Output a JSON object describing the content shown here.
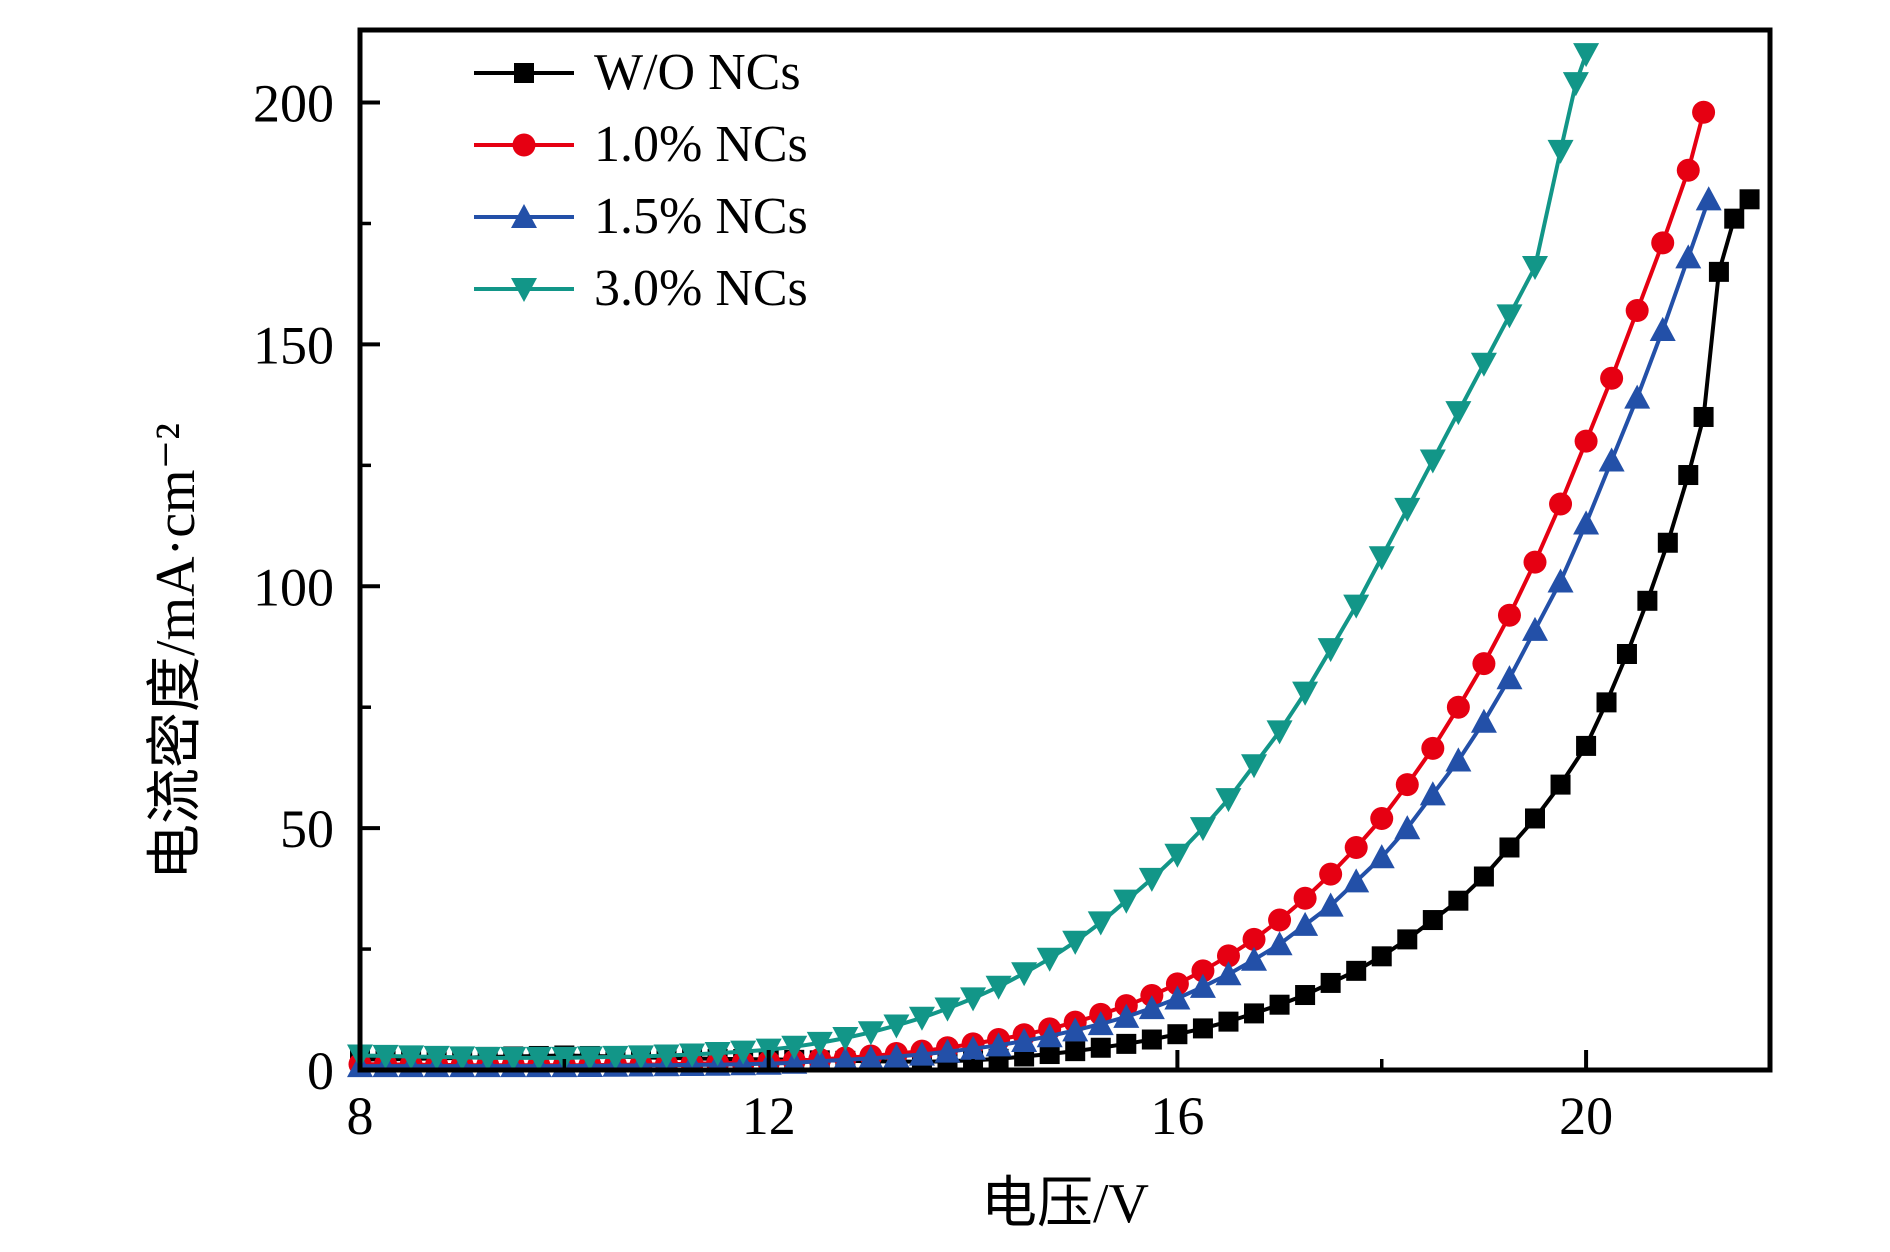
{
  "chart_data": {
    "type": "line",
    "title": "",
    "xlabel": "电压/V",
    "ylabel": "电流密度/mA·cm⁻²",
    "xlim": [
      8,
      21.8
    ],
    "ylim": [
      0,
      215
    ],
    "x_ticks": [
      8,
      12,
      16,
      20
    ],
    "y_ticks": [
      0,
      50,
      100,
      150,
      200
    ],
    "x_minor_ticks": [
      10,
      14,
      18
    ],
    "y_minor_ticks": [
      25,
      75,
      125,
      175
    ],
    "grid": false,
    "legend_position": "upper-left",
    "frame_color": "#000000",
    "series": [
      {
        "name": "W/O NCs",
        "color": "#000000",
        "marker": "square",
        "points": [
          [
            8,
            2.2
          ],
          [
            8.25,
            2.2
          ],
          [
            8.5,
            2.3
          ],
          [
            8.75,
            2.4
          ],
          [
            9,
            2.5
          ],
          [
            9.25,
            2.7
          ],
          [
            9.5,
            2.8
          ],
          [
            9.75,
            2.9
          ],
          [
            10,
            3.0
          ],
          [
            10.25,
            2.9
          ],
          [
            10.5,
            2.8
          ],
          [
            10.75,
            2.6
          ],
          [
            11,
            2.5
          ],
          [
            11.25,
            2.4
          ],
          [
            11.5,
            2.3
          ],
          [
            11.75,
            2.25
          ],
          [
            12,
            2.2
          ],
          [
            12.25,
            2.1
          ],
          [
            12.5,
            2.0
          ],
          [
            12.75,
            1.9
          ],
          [
            13,
            1.8
          ],
          [
            13.25,
            1.75
          ],
          [
            13.5,
            1.7
          ],
          [
            13.75,
            1.8
          ],
          [
            14,
            2.0
          ],
          [
            14.25,
            2.3
          ],
          [
            14.5,
            2.8
          ],
          [
            14.75,
            3.3
          ],
          [
            15,
            3.9
          ],
          [
            15.25,
            4.6
          ],
          [
            15.5,
            5.4
          ],
          [
            15.75,
            6.3
          ],
          [
            16,
            7.4
          ],
          [
            16.25,
            8.6
          ],
          [
            16.5,
            10.0
          ],
          [
            16.75,
            11.7
          ],
          [
            17,
            13.5
          ],
          [
            17.25,
            15.5
          ],
          [
            17.5,
            18.0
          ],
          [
            17.75,
            20.5
          ],
          [
            18,
            23.5
          ],
          [
            18.25,
            27.0
          ],
          [
            18.5,
            31.0
          ],
          [
            18.75,
            35.0
          ],
          [
            19,
            40.0
          ],
          [
            19.25,
            46.0
          ],
          [
            19.5,
            52.0
          ],
          [
            19.75,
            59.0
          ],
          [
            20,
            67.0
          ],
          [
            20.2,
            76.0
          ],
          [
            20.4,
            86.0
          ],
          [
            20.6,
            97.0
          ],
          [
            20.8,
            109.0
          ],
          [
            21,
            123.0
          ],
          [
            21.15,
            135.0
          ],
          [
            21.3,
            165.0
          ],
          [
            21.45,
            176.0
          ],
          [
            21.6,
            180.0
          ]
        ]
      },
      {
        "name": "1.0% NCs",
        "color": "#e60012",
        "marker": "circle",
        "points": [
          [
            8,
            1.2
          ],
          [
            8.25,
            1.2
          ],
          [
            8.5,
            1.1
          ],
          [
            8.75,
            1.1
          ],
          [
            9,
            1.0
          ],
          [
            9.25,
            1.0
          ],
          [
            9.5,
            1.0
          ],
          [
            9.75,
            1.0
          ],
          [
            10,
            1.0
          ],
          [
            10.25,
            1.0
          ],
          [
            10.5,
            1.1
          ],
          [
            10.75,
            1.1
          ],
          [
            11,
            1.2
          ],
          [
            11.25,
            1.3
          ],
          [
            11.5,
            1.4
          ],
          [
            11.75,
            1.5
          ],
          [
            12,
            1.7
          ],
          [
            12.25,
            1.9
          ],
          [
            12.5,
            2.2
          ],
          [
            12.75,
            2.5
          ],
          [
            13,
            2.9
          ],
          [
            13.25,
            3.4
          ],
          [
            13.5,
            3.9
          ],
          [
            13.75,
            4.6
          ],
          [
            14,
            5.4
          ],
          [
            14.25,
            6.3
          ],
          [
            14.5,
            7.3
          ],
          [
            14.75,
            8.5
          ],
          [
            15,
            9.9
          ],
          [
            15.25,
            11.5
          ],
          [
            15.5,
            13.3
          ],
          [
            15.75,
            15.4
          ],
          [
            16,
            17.8
          ],
          [
            16.25,
            20.5
          ],
          [
            16.5,
            23.6
          ],
          [
            16.75,
            27.0
          ],
          [
            17,
            31.0
          ],
          [
            17.25,
            35.5
          ],
          [
            17.5,
            40.5
          ],
          [
            17.75,
            46.0
          ],
          [
            18,
            52.0
          ],
          [
            18.25,
            59.0
          ],
          [
            18.5,
            66.5
          ],
          [
            18.75,
            75.0
          ],
          [
            19,
            84.0
          ],
          [
            19.25,
            94.0
          ],
          [
            19.5,
            105.0
          ],
          [
            19.75,
            117.0
          ],
          [
            20,
            130.0
          ],
          [
            20.25,
            143.0
          ],
          [
            20.5,
            157.0
          ],
          [
            20.75,
            171.0
          ],
          [
            21,
            186.0
          ],
          [
            21.15,
            198.0
          ]
        ]
      },
      {
        "name": "1.5% NCs",
        "color": "#2350a8",
        "marker": "triangle-up",
        "points": [
          [
            8,
            0.8
          ],
          [
            8.25,
            0.8
          ],
          [
            8.5,
            0.8
          ],
          [
            8.75,
            0.8
          ],
          [
            9,
            0.8
          ],
          [
            9.25,
            0.8
          ],
          [
            9.5,
            0.8
          ],
          [
            9.75,
            0.8
          ],
          [
            10,
            0.8
          ],
          [
            10.25,
            0.85
          ],
          [
            10.5,
            0.9
          ],
          [
            10.75,
            0.95
          ],
          [
            11,
            1.0
          ],
          [
            11.25,
            1.05
          ],
          [
            11.5,
            1.1
          ],
          [
            11.75,
            1.2
          ],
          [
            12,
            1.3
          ],
          [
            12.25,
            1.5
          ],
          [
            12.5,
            1.8
          ],
          [
            12.75,
            2.1
          ],
          [
            13,
            2.4
          ],
          [
            13.25,
            2.8
          ],
          [
            13.5,
            3.2
          ],
          [
            13.75,
            3.8
          ],
          [
            14,
            4.4
          ],
          [
            14.25,
            5.1
          ],
          [
            14.5,
            6.0
          ],
          [
            14.75,
            7.0
          ],
          [
            15,
            8.2
          ],
          [
            15.25,
            9.5
          ],
          [
            15.5,
            11.0
          ],
          [
            15.75,
            12.8
          ],
          [
            16,
            14.8
          ],
          [
            16.25,
            17.2
          ],
          [
            16.5,
            19.8
          ],
          [
            16.75,
            22.8
          ],
          [
            17,
            26.0
          ],
          [
            17.25,
            30.0
          ],
          [
            17.5,
            34.0
          ],
          [
            17.75,
            39.0
          ],
          [
            18,
            44.0
          ],
          [
            18.25,
            50.0
          ],
          [
            18.5,
            57.0
          ],
          [
            18.75,
            64.0
          ],
          [
            19,
            72.0
          ],
          [
            19.25,
            81.0
          ],
          [
            19.5,
            91.0
          ],
          [
            19.75,
            101.0
          ],
          [
            20,
            113.0
          ],
          [
            20.25,
            126.0
          ],
          [
            20.5,
            139.0
          ],
          [
            20.75,
            153.0
          ],
          [
            21,
            168.0
          ],
          [
            21.2,
            180.0
          ]
        ]
      },
      {
        "name": "3.0% NCs",
        "color": "#129688",
        "marker": "triangle-down",
        "points": [
          [
            8,
            3.0
          ],
          [
            8.25,
            2.9
          ],
          [
            8.5,
            2.8
          ],
          [
            8.75,
            2.7
          ],
          [
            9,
            2.6
          ],
          [
            9.25,
            2.5
          ],
          [
            9.5,
            2.5
          ],
          [
            9.75,
            2.5
          ],
          [
            10,
            2.5
          ],
          [
            10.25,
            2.6
          ],
          [
            10.5,
            2.7
          ],
          [
            10.75,
            2.8
          ],
          [
            11,
            3.0
          ],
          [
            11.25,
            3.2
          ],
          [
            11.5,
            3.5
          ],
          [
            11.75,
            3.8
          ],
          [
            12,
            4.2
          ],
          [
            12.25,
            4.8
          ],
          [
            12.5,
            5.6
          ],
          [
            12.75,
            6.6
          ],
          [
            13,
            7.8
          ],
          [
            13.25,
            9.2
          ],
          [
            13.5,
            10.8
          ],
          [
            13.75,
            12.7
          ],
          [
            14,
            14.8
          ],
          [
            14.25,
            17.2
          ],
          [
            14.5,
            20.0
          ],
          [
            14.75,
            23.0
          ],
          [
            15,
            26.5
          ],
          [
            15.25,
            30.5
          ],
          [
            15.5,
            35.0
          ],
          [
            15.75,
            39.5
          ],
          [
            16,
            44.5
          ],
          [
            16.25,
            50.0
          ],
          [
            16.5,
            56.0
          ],
          [
            16.75,
            63.0
          ],
          [
            17,
            70.0
          ],
          [
            17.25,
            78.0
          ],
          [
            17.5,
            87.0
          ],
          [
            17.75,
            96.0
          ],
          [
            18,
            106.0
          ],
          [
            18.25,
            116.0
          ],
          [
            18.5,
            126.0
          ],
          [
            18.75,
            136.0
          ],
          [
            19,
            146.0
          ],
          [
            19.25,
            156.0
          ],
          [
            19.5,
            166.0
          ],
          [
            19.75,
            190.0
          ],
          [
            19.9,
            204.0
          ],
          [
            20,
            210.0
          ]
        ]
      }
    ]
  }
}
